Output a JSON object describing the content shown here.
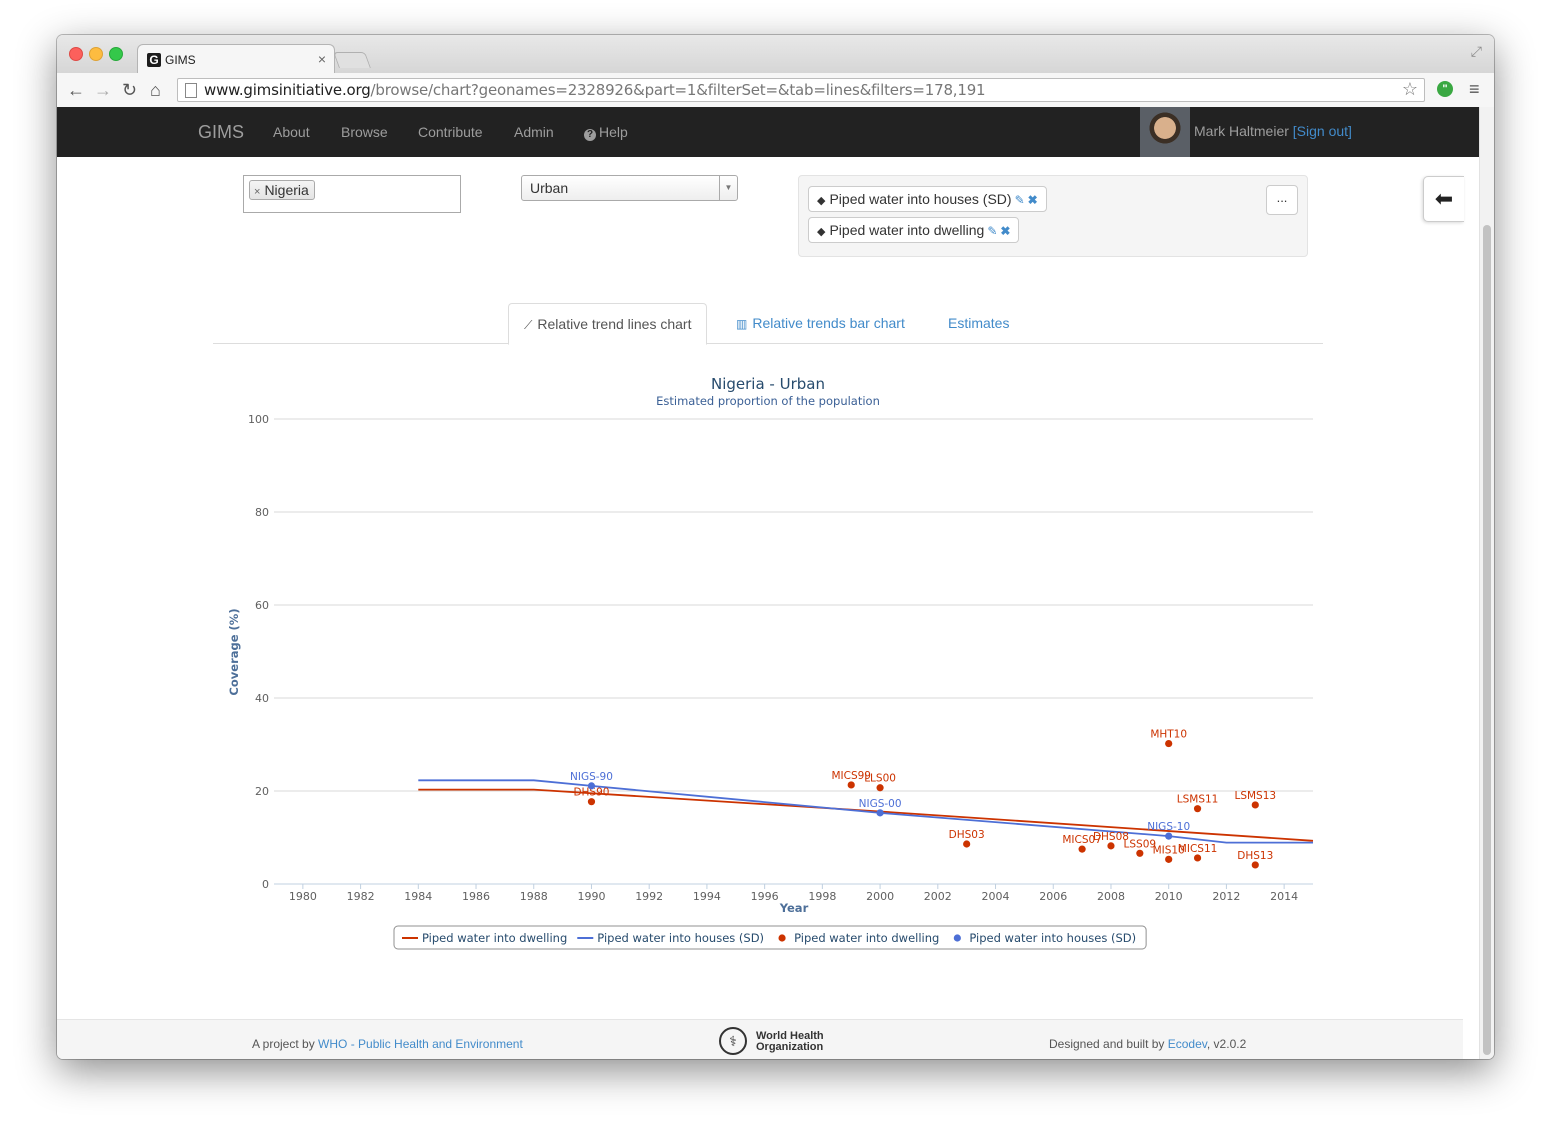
{
  "browser": {
    "tab_title": "GIMS",
    "favicon_letter": "G",
    "url_host": "www.gimsinitiative.org",
    "url_path": "/browse/chart?geonames=2328926&part=1&filterSet=&tab=lines&filters=178,191"
  },
  "navbar": {
    "brand": "GIMS",
    "links": [
      "About",
      "Browse",
      "Contribute",
      "Admin"
    ],
    "help": "Help",
    "user_name": "Mark Haltmeier",
    "sign_out": "[Sign out]"
  },
  "filters": {
    "geoname": "Nigeria",
    "part": "Urban",
    "items": [
      "Piped water into houses (SD)",
      "Piped water into dwelling"
    ],
    "more_label": "..."
  },
  "tabs": [
    "Relative trend lines chart",
    "Relative trends bar chart",
    "Estimates"
  ],
  "chart_data": {
    "type": "line",
    "title": "Nigeria - Urban",
    "subtitle": "Estimated proportion of the population",
    "xlabel": "Year",
    "ylabel": "Coverage (%)",
    "xlim": [
      1979,
      2015
    ],
    "ylim": [
      0,
      100
    ],
    "x_ticks": [
      1980,
      1982,
      1984,
      1986,
      1988,
      1990,
      1992,
      1994,
      1996,
      1998,
      2000,
      2002,
      2004,
      2006,
      2008,
      2010,
      2012,
      2014
    ],
    "y_ticks": [
      0,
      20,
      40,
      60,
      80,
      100
    ],
    "grid": true,
    "legend_position": "bottom",
    "colors": {
      "dwelling": "#cc3300",
      "houses": "#4d6fd6"
    },
    "series": [
      {
        "name": "Piped water into dwelling",
        "kind": "line",
        "color": "#cc3300",
        "points": [
          [
            1984,
            20.3
          ],
          [
            1988,
            20.3
          ],
          [
            2000,
            15.6
          ],
          [
            2015,
            9.3
          ]
        ]
      },
      {
        "name": "Piped water into houses (SD)",
        "kind": "line",
        "color": "#4d6fd6",
        "points": [
          [
            1984,
            22.3
          ],
          [
            1988,
            22.3
          ],
          [
            1990,
            21.1
          ],
          [
            2000,
            15.3
          ],
          [
            2010,
            10.3
          ],
          [
            2012,
            8.9
          ],
          [
            2015,
            8.9
          ]
        ]
      },
      {
        "name": "Piped water into dwelling",
        "kind": "scatter",
        "color": "#cc3300",
        "points": [
          {
            "x": 1990,
            "y": 17.7,
            "label": "DHS90"
          },
          {
            "x": 1999,
            "y": 21.3,
            "label": "MICS99"
          },
          {
            "x": 2000,
            "y": 20.7,
            "label": "LLS00"
          },
          {
            "x": 2003,
            "y": 8.6,
            "label": "DHS03"
          },
          {
            "x": 2007,
            "y": 7.5,
            "label": "MICS07"
          },
          {
            "x": 2008,
            "y": 8.2,
            "label": "DHS08"
          },
          {
            "x": 2009,
            "y": 6.6,
            "label": "LSS09"
          },
          {
            "x": 2010,
            "y": 5.3,
            "label": "MIS10"
          },
          {
            "x": 2010,
            "y": 30.2,
            "label": "MHT10"
          },
          {
            "x": 2011,
            "y": 5.6,
            "label": "MICS11"
          },
          {
            "x": 2011,
            "y": 16.2,
            "label": "LSMS11"
          },
          {
            "x": 2013,
            "y": 17.0,
            "label": "LSMS13"
          },
          {
            "x": 2013,
            "y": 4.1,
            "label": "DHS13"
          }
        ]
      },
      {
        "name": "Piped water into houses (SD)",
        "kind": "scatter",
        "color": "#4d6fd6",
        "points": [
          {
            "x": 1990,
            "y": 21.1,
            "label": "NIGS-90"
          },
          {
            "x": 2000,
            "y": 15.3,
            "label": "NIGS-00"
          },
          {
            "x": 2010,
            "y": 10.3,
            "label": "NIGS-10"
          }
        ]
      }
    ]
  },
  "footer": {
    "left_prefix": "A project by ",
    "left_link": "WHO - Public Health and Environment",
    "logo_line1": "World Health",
    "logo_line2": "Organization",
    "right_prefix": "Designed and built by ",
    "right_link": "Ecodev",
    "version": ", v2.0.2"
  }
}
